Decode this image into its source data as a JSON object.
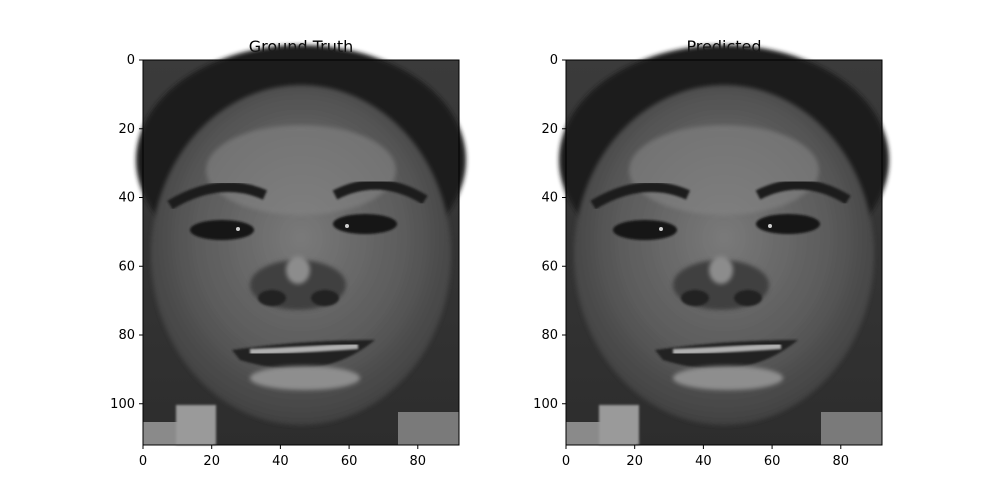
{
  "panels": [
    {
      "title": "Ground Truth",
      "image": "grayscale-face-photo",
      "x_ticks": [
        "0",
        "20",
        "40",
        "60",
        "80"
      ],
      "y_ticks": [
        "0",
        "20",
        "40",
        "60",
        "80",
        "100"
      ]
    },
    {
      "title": "Predicted",
      "image": "grayscale-face-photo",
      "x_ticks": [
        "0",
        "20",
        "40",
        "60",
        "80"
      ],
      "y_ticks": [
        "0",
        "20",
        "40",
        "60",
        "80",
        "100"
      ]
    }
  ],
  "colors": {
    "background": "#ffffff",
    "image_dark": "#2a2a2a",
    "image_mid": "#5c5c5c",
    "image_light": "#8a8a8a"
  }
}
